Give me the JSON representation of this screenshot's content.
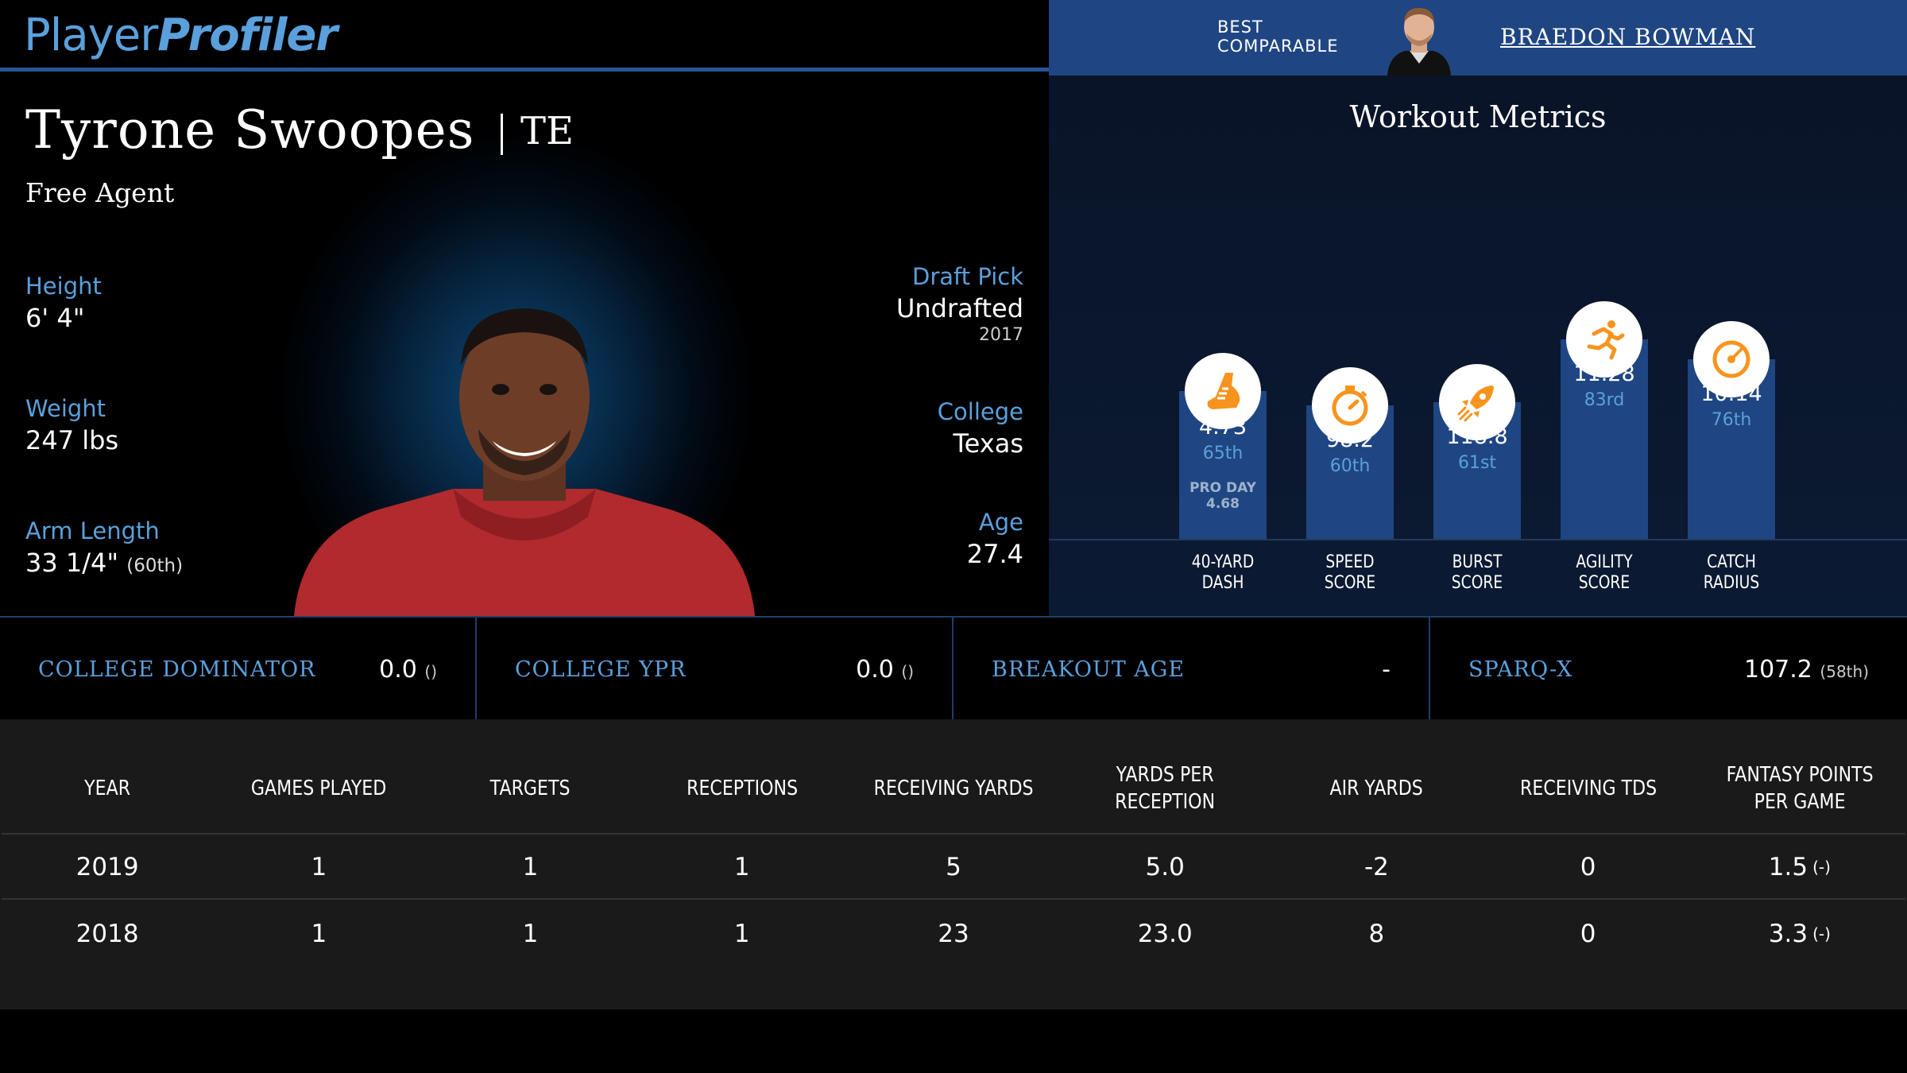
{
  "header": {
    "logo_part1": "Player",
    "logo_part2": "Profiler",
    "best_comparable_line1": "BEST",
    "best_comparable_line2": "COMPARABLE",
    "best_comparable_name": "BRAEDON BOWMAN"
  },
  "player": {
    "name": "Tyrone Swoopes",
    "position": "TE",
    "status": "Free Agent",
    "height_label": "Height",
    "height": "6' 4\"",
    "weight_label": "Weight",
    "weight": "247 lbs",
    "arm_label": "Arm Length",
    "arm": "33 1/4\"",
    "arm_pct": "(60th)",
    "draft_label": "Draft Pick",
    "draft": "Undrafted",
    "draft_year": "2017",
    "college_label": "College",
    "college": "Texas",
    "age_label": "Age",
    "age": "27.4"
  },
  "workout": {
    "title": "Workout Metrics",
    "metrics": [
      {
        "label1": "40-YARD",
        "label2": "DASH",
        "value": "4.73",
        "pct": "65th",
        "extra1": "PRO DAY",
        "extra2": "4.68",
        "icon": "shoe-icon",
        "level": 65
      },
      {
        "label1": "SPEED",
        "label2": "SCORE",
        "value": "98.2",
        "pct": "60th",
        "icon": "stopwatch-icon",
        "level": 60
      },
      {
        "label1": "BURST",
        "label2": "SCORE",
        "value": "118.8",
        "pct": "61st",
        "icon": "rocket-icon",
        "level": 61
      },
      {
        "label1": "AGILITY",
        "label2": "SCORE",
        "value": "11.28",
        "pct": "83rd",
        "icon": "runner-icon",
        "level": 83
      },
      {
        "label1": "CATCH",
        "label2": "RADIUS",
        "value": "10.14",
        "pct": "76th",
        "icon": "target-icon",
        "level": 76
      }
    ]
  },
  "stats": [
    {
      "name": "COLLEGE DOMINATOR",
      "value": "0.0",
      "sub": "()"
    },
    {
      "name": "COLLEGE YPR",
      "value": "0.0",
      "sub": "()"
    },
    {
      "name": "BREAKOUT AGE",
      "value": "-",
      "sub": ""
    },
    {
      "name": "SPARQ-X",
      "value": "107.2",
      "sub": "(58th)"
    }
  ],
  "table": {
    "headers": [
      "YEAR",
      "GAMES PLAYED",
      "TARGETS",
      "RECEPTIONS",
      "RECEIVING YARDS",
      "YARDS PER RECEPTION",
      "AIR YARDS",
      "RECEIVING TDS",
      "FANTASY POINTS PER GAME"
    ],
    "rows": [
      [
        "2019",
        "1",
        "1",
        "1",
        "5",
        "5.0",
        "-2",
        "0",
        "1.5"
      ],
      [
        "2018",
        "1",
        "1",
        "1",
        "23",
        "23.0",
        "8",
        "0",
        "3.3"
      ]
    ],
    "fp_subs": [
      "(-)",
      "(-)"
    ]
  },
  "colors": {
    "accent": "#5aa0dc",
    "bar": "#1f4682",
    "icon": "#f7941d"
  }
}
